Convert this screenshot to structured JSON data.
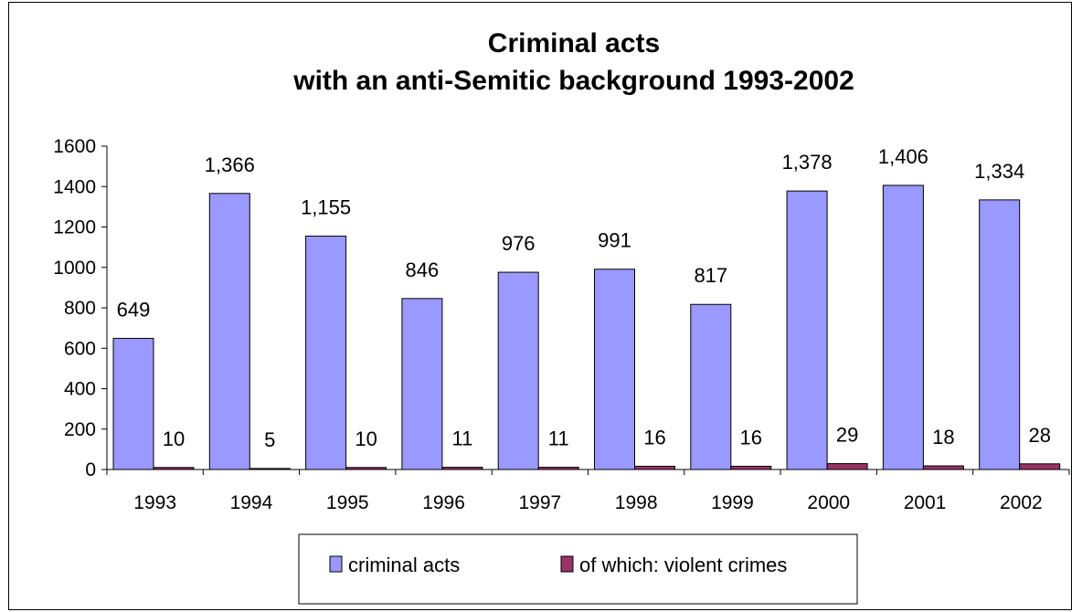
{
  "chart_data": {
    "type": "bar",
    "title_line1": "Criminal acts",
    "title_line2": "with an anti-Semitic background  1993-2002",
    "categories": [
      "1993",
      "1994",
      "1995",
      "1996",
      "1997",
      "1998",
      "1999",
      "2000",
      "2001",
      "2002"
    ],
    "series": [
      {
        "name": "criminal acts",
        "color": "#9999ff",
        "values": [
          649,
          1366,
          1155,
          846,
          976,
          991,
          817,
          1378,
          1406,
          1334
        ],
        "labels": [
          "649",
          "1,366",
          "1,155",
          "846",
          "976",
          "991",
          "817",
          "1,378",
          "1,406",
          "1,334"
        ]
      },
      {
        "name": "of which: violent crimes",
        "color": "#993366",
        "values": [
          10,
          5,
          10,
          11,
          11,
          16,
          16,
          29,
          18,
          28
        ],
        "labels": [
          "10",
          "5",
          "10",
          "11",
          "11",
          "16",
          "16",
          "29",
          "18",
          "28"
        ]
      }
    ],
    "ylim": [
      0,
      1600
    ],
    "yticks": [
      "0",
      "200",
      "400",
      "600",
      "800",
      "1000",
      "1200",
      "1400",
      "1600"
    ],
    "grid": false,
    "legend_position": "bottom"
  }
}
